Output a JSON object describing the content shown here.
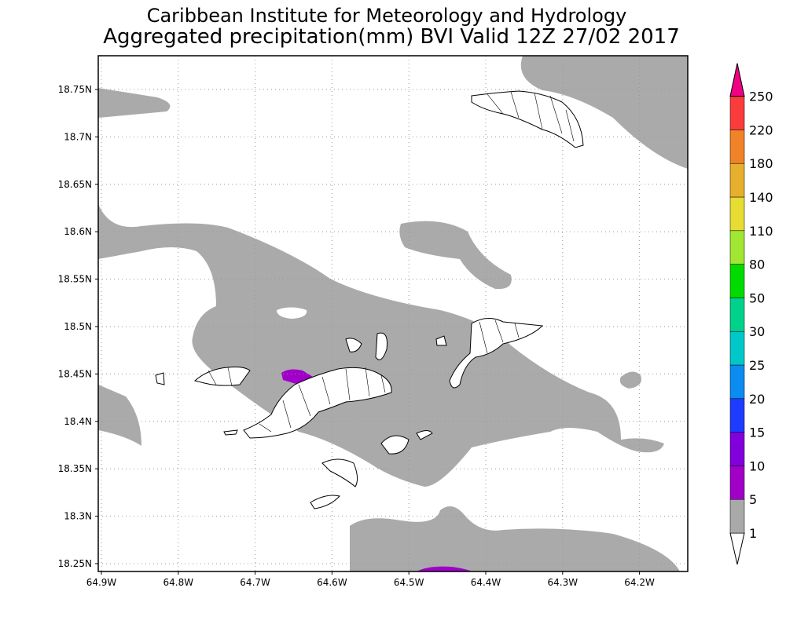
{
  "title": "Caribbean Institute for Meteorology and Hydrology",
  "subtitle": "Aggregated precipitation(mm) BVI Valid 12Z 27/02 2017",
  "map": {
    "lat_ticks": [
      "18.75N",
      "18.7N",
      "18.65N",
      "18.6N",
      "18.55N",
      "18.5N",
      "18.45N",
      "18.4N",
      "18.35N",
      "18.3N",
      "18.25N"
    ],
    "lon_ticks": [
      "64.9W",
      "64.8W",
      "64.7W",
      "64.6W",
      "64.5W",
      "64.4W",
      "64.3W",
      "64.2W"
    ]
  },
  "colorbar": {
    "labels": [
      "1",
      "5",
      "10",
      "15",
      "20",
      "25",
      "30",
      "50",
      "80",
      "110",
      "140",
      "180",
      "220",
      "250"
    ],
    "colors": [
      "#a9a9a9",
      "#a000c8",
      "#8200dc",
      "#1e3cff",
      "#0a8cf0",
      "#00c8c8",
      "#00d28c",
      "#00dc00",
      "#a0e632",
      "#e6dc32",
      "#e6af2d",
      "#f08228",
      "#fa3c3c",
      "#f00082"
    ]
  }
}
